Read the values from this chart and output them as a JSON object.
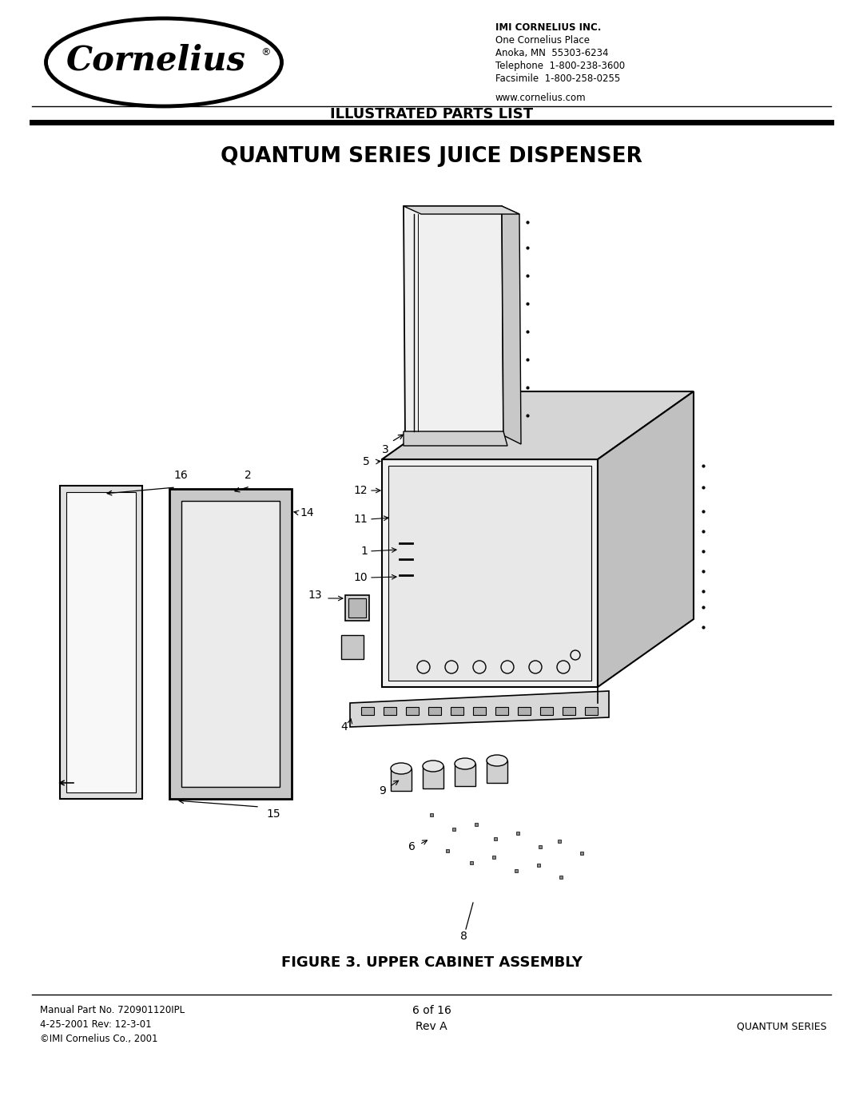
{
  "title_main": "QUANTUM SERIES JUICE DISPENSER",
  "title_header": "ILLUSTRATED PARTS LIST",
  "figure_caption": "FIGURE 3. UPPER CABINET ASSEMBLY",
  "company_name": "IMI CORNELIUS INC.",
  "company_address": "One Cornelius Place",
  "company_city": "Anoka, MN  55303-6234",
  "company_phone": "Telephone  1-800-238-3600",
  "company_fax": "Facsimile  1-800-258-0255",
  "company_web": "www.cornelius.com",
  "footer_left_1": "Manual Part No. 720901120IPL",
  "footer_left_2": "4-25-2001 Rev: 12-3-01",
  "footer_left_3": "©IMI Cornelius Co., 2001",
  "footer_center_1": "6 of 16",
  "footer_center_2": "Rev A",
  "footer_right": "QUANTUM SERIES",
  "bg_color": "#ffffff",
  "line_color": "#000000"
}
